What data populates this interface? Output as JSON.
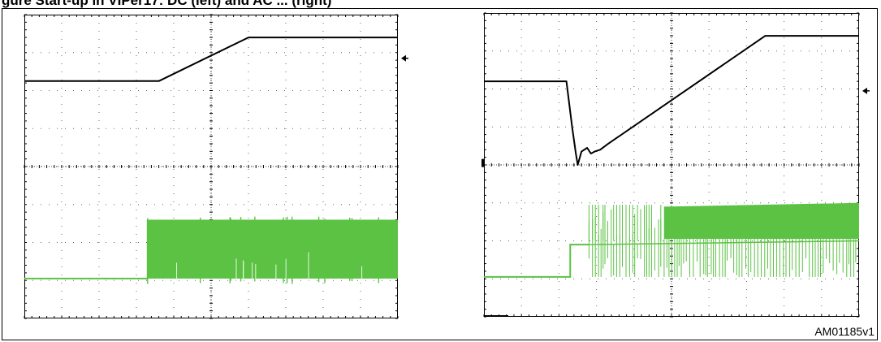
{
  "figure": {
    "header": "gure        Start-up in VIPer17: DC (left) and AC ... (right)",
    "id_label": "AM01185v1"
  },
  "colors": {
    "voltage_trace": "#000000",
    "switching_trace": "#5cc244",
    "grid": "#000000"
  },
  "chart_data": [
    {
      "type": "line",
      "panel": "left",
      "title": "",
      "xlabel": "",
      "ylabel": "",
      "grid": true,
      "divisions": {
        "x": 10,
        "y": 8
      },
      "xlim": [
        0,
        10
      ],
      "ylim": [
        0,
        8
      ],
      "series": [
        {
          "x": [
            0,
            3.6,
            6.0,
            10
          ],
          "y": [
            6.25,
            6.25,
            7.4,
            7.4
          ]
        },
        {
          "x": [
            0,
            3.3,
            3.3,
            10
          ],
          "y": [
            1.05,
            1.05,
            2.6,
            2.6
          ],
          "burst_start": 3.3,
          "burst_high": 2.6,
          "burst_low": 1.05
        }
      ]
    },
    {
      "type": "line",
      "panel": "right",
      "title": "",
      "xlabel": "",
      "ylabel": "",
      "grid": true,
      "divisions": {
        "x": 10,
        "y": 8
      },
      "xlim": [
        0,
        10
      ],
      "ylim": [
        0,
        8
      ],
      "series": [
        {
          "x": [
            0,
            2.2,
            2.35,
            2.45,
            2.5,
            2.6,
            2.75,
            2.85,
            2.95,
            3.1,
            3.3,
            7.5,
            10
          ],
          "y": [
            6.2,
            6.2,
            5.0,
            4.3,
            4.0,
            4.35,
            4.45,
            4.3,
            4.35,
            4.4,
            4.55,
            7.4,
            7.4
          ]
        },
        {
          "x": [
            0,
            2.3,
            2.3,
            2.8,
            2.8,
            10
          ],
          "y": [
            1.05,
            1.05,
            1.9,
            1.9,
            2.85,
            3.0
          ],
          "burst_start": 2.8,
          "burst_high": 2.95,
          "burst_mid": 2.05,
          "burst_low": 1.05
        }
      ]
    }
  ]
}
